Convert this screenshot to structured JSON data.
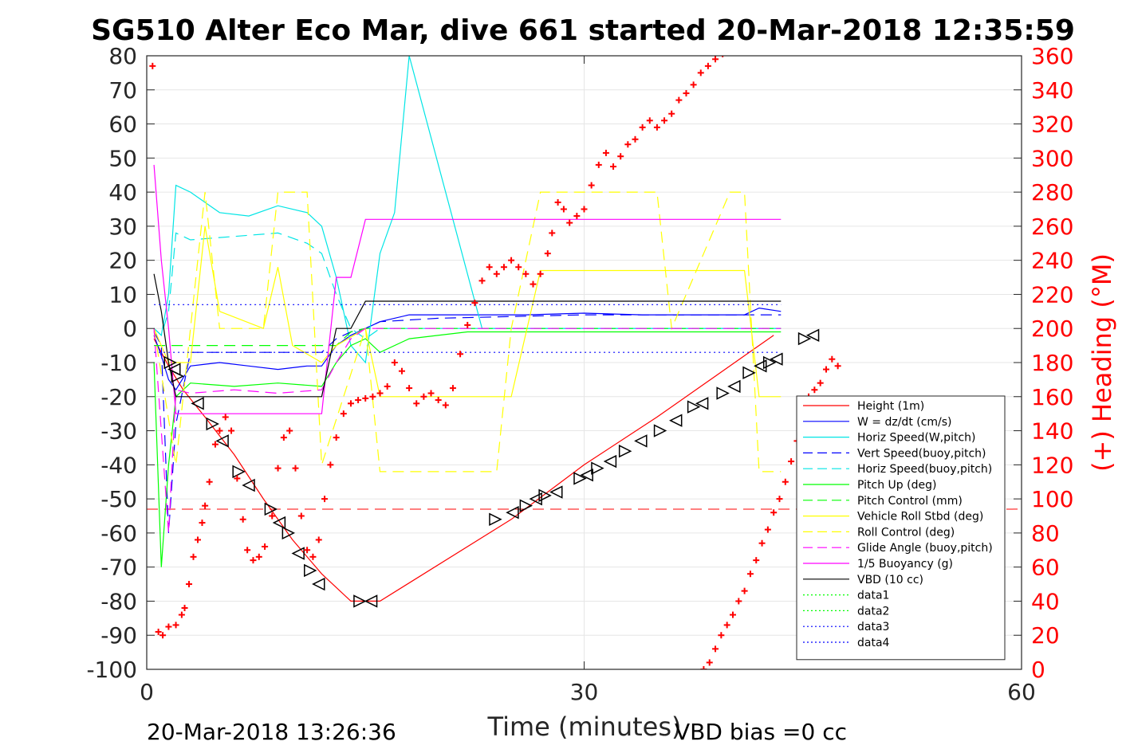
{
  "chart_data": {
    "type": "line",
    "title": "SG510 Alter Eco Mar, dive 661 started 20-Mar-2018 12:35:59",
    "xlabel": "Time (minutes)",
    "ylabel": "",
    "y2label": "(+) Heading (°M)",
    "xlim": [
      0,
      60
    ],
    "ylim": [
      -100,
      80
    ],
    "y2lim": [
      0,
      360
    ],
    "xticks": [
      "0",
      "30",
      "60"
    ],
    "yticks": [
      "80",
      "70",
      "60",
      "50",
      "40",
      "30",
      "20",
      "10",
      "0",
      "-10",
      "-20",
      "-30",
      "-40",
      "-50",
      "-60",
      "-70",
      "-80",
      "-90",
      "-100"
    ],
    "y2ticks": [
      "360",
      "340",
      "320",
      "300",
      "280",
      "260",
      "240",
      "220",
      "200",
      "180",
      "160",
      "140",
      "120",
      "100",
      "80",
      "60",
      "40",
      "20",
      "0"
    ],
    "grid": true,
    "legend_position": "lower-right",
    "footer_left": "20-Mar-2018 13:26:36",
    "footer_right": "VBD bias =0 cc",
    "colors": {
      "red": "#ff0000",
      "blue": "#0000ff",
      "cyan": "#00e5e5",
      "green": "#00ff00",
      "yellow": "#ffff00",
      "magenta": "#ff00ff",
      "black": "#000000"
    },
    "series": [
      {
        "name": "Height (1m)",
        "color": "#ff0000",
        "style": "solid",
        "x": [
          0.5,
          1.5,
          2.5,
          4,
          6,
          8,
          10,
          12,
          14,
          16,
          25,
          30,
          35,
          38,
          41,
          43
        ],
        "y": [
          -3,
          -11,
          -18,
          -26,
          -37,
          -50,
          -62,
          -72,
          -80,
          -80,
          -56,
          -40,
          -26,
          -17,
          -8,
          -2
        ]
      },
      {
        "name": "W = dz/dt (cm/s)",
        "color": "#0000ff",
        "style": "solid",
        "x": [
          0.5,
          1.0,
          1.5,
          2.0,
          3,
          5,
          7,
          9,
          11,
          12,
          13,
          14,
          15,
          16,
          18,
          22,
          26,
          30,
          34,
          38,
          41,
          42,
          43.5
        ],
        "y": [
          -2,
          -8,
          -15,
          -18,
          -11,
          -10,
          -11,
          -12,
          -11,
          -11,
          -5,
          -2,
          0,
          2,
          4,
          4,
          4,
          4.5,
          4,
          4,
          4,
          6,
          5
        ]
      },
      {
        "name": "Horiz Speed(W,pitch)",
        "color": "#00e5e5",
        "style": "solid",
        "x": [
          0.5,
          1,
          1.5,
          2,
          3,
          5,
          7,
          9,
          11,
          12,
          13,
          14,
          15,
          16,
          17,
          18,
          23,
          30,
          38,
          43.5
        ],
        "y": [
          0,
          -2,
          10,
          42,
          40,
          34,
          33,
          36,
          34,
          30,
          15,
          -5,
          -10,
          22,
          34,
          80,
          0,
          0,
          0,
          0
        ]
      },
      {
        "name": "Vert Speed(buoy,pitch)",
        "color": "#0000ff",
        "style": "dashed",
        "x": [
          0.5,
          1,
          1.5,
          2,
          3,
          6,
          9,
          12,
          13,
          14,
          15,
          16,
          20,
          30,
          43.5
        ],
        "y": [
          -1,
          -5,
          -60,
          -28,
          -7,
          -7,
          -7,
          -7,
          -3,
          -1,
          0,
          2,
          3,
          4,
          4
        ]
      },
      {
        "name": "Horiz Speed(buoy,pitch)",
        "color": "#00e5e5",
        "style": "dashed",
        "x": [
          0.5,
          1,
          1.5,
          2,
          3,
          6,
          9,
          11,
          12,
          13,
          14,
          15,
          16,
          20,
          30,
          43.5
        ],
        "y": [
          0,
          -2,
          5,
          28,
          26,
          27,
          28,
          25,
          22,
          10,
          0,
          -3,
          0,
          0,
          0,
          0
        ]
      },
      {
        "name": "Pitch Up (deg)",
        "color": "#00ff00",
        "style": "solid",
        "x": [
          0.5,
          1,
          1.5,
          2,
          3,
          6,
          9,
          12,
          13,
          14,
          15,
          16,
          18,
          22,
          30,
          43.5
        ],
        "y": [
          -10,
          -70,
          -40,
          -20,
          -16,
          -17,
          -16,
          -17,
          -10,
          -5,
          -3,
          -7,
          -3,
          -1,
          -1,
          -1
        ]
      },
      {
        "name": "Pitch Control (mm)",
        "color": "#00ff00",
        "style": "dashed",
        "x": [
          0.5,
          2,
          12,
          13,
          14,
          15,
          43.5
        ],
        "y": [
          -5,
          -5,
          -5,
          -5,
          -1,
          0,
          0
        ]
      },
      {
        "name": "Vehicle Roll Stbd (deg)",
        "color": "#ffff00",
        "style": "solid",
        "x": [
          0.5,
          1.5,
          3,
          4,
          5,
          8,
          9,
          10,
          12,
          13,
          15,
          16,
          20,
          25,
          27,
          30,
          36,
          37,
          41,
          42,
          43.5
        ],
        "y": [
          0,
          -10,
          -10,
          30,
          5,
          0,
          18,
          -5,
          -10,
          -5,
          0,
          -20,
          -20,
          -20,
          17,
          17,
          17,
          17,
          17,
          -20,
          -20
        ]
      },
      {
        "name": "Roll Control (deg)",
        "color": "#ffff00",
        "style": "dashed",
        "x": [
          0.5,
          2,
          4,
          5,
          8,
          9,
          11,
          12,
          15,
          16,
          20,
          24,
          25,
          27,
          35,
          36,
          40,
          41,
          42,
          43.5
        ],
        "y": [
          0,
          -40,
          40,
          0,
          0,
          40,
          40,
          -40,
          0,
          -42,
          -42,
          -42,
          0,
          40,
          40,
          0,
          40,
          40,
          -42,
          -42
        ]
      },
      {
        "name": "Glide Angle (buoy,pitch)",
        "color": "#ff00ff",
        "style": "dashed",
        "x": [
          0.5,
          1.5,
          2,
          3,
          6,
          9,
          12,
          13,
          14,
          15,
          16,
          20,
          30,
          43.5
        ],
        "y": [
          0,
          -60,
          -18,
          -19,
          -18,
          -19,
          -18,
          -10,
          -3,
          0,
          0,
          0,
          0,
          0
        ]
      },
      {
        "name": "1/5 Buoyancy (g)",
        "color": "#ff00ff",
        "style": "solid",
        "x": [
          0.5,
          1,
          1.5,
          2,
          12,
          13,
          14,
          15,
          16,
          30,
          43.5
        ],
        "y": [
          48,
          20,
          0,
          -25,
          -25,
          15,
          15,
          32,
          32,
          32,
          32
        ]
      },
      {
        "name": "VBD (10 cc)",
        "color": "#000000",
        "style": "solid",
        "x": [
          0.5,
          1,
          1.5,
          2,
          12,
          13,
          14,
          15,
          16,
          43.5
        ],
        "y": [
          16,
          5,
          -10,
          -20,
          -20,
          0,
          0,
          8,
          8,
          8
        ]
      },
      {
        "name": "data1",
        "color": "#00ff00",
        "style": "dotted",
        "x": [],
        "y": []
      },
      {
        "name": "data2",
        "color": "#00ff00",
        "style": "dotted",
        "x": [],
        "y": []
      },
      {
        "name": "data3",
        "color": "#0000ff",
        "style": "dotted",
        "x": [
          0.5,
          43.5
        ],
        "y": [
          7,
          7
        ]
      },
      {
        "name": "data4",
        "color": "#0000ff",
        "style": "dotted",
        "x": [
          0.5,
          43.5
        ],
        "y": [
          -7,
          -7
        ]
      }
    ],
    "reference_lines": [
      {
        "color": "#ff0000",
        "style": "dashed",
        "y": -53
      }
    ],
    "heading": {
      "color": "#ff0000",
      "points": [
        [
          0.4,
          354
        ],
        [
          0.8,
          22
        ],
        [
          1.1,
          20
        ],
        [
          1.5,
          25
        ],
        [
          2.0,
          26
        ],
        [
          2.4,
          32
        ],
        [
          2.6,
          36
        ],
        [
          2.9,
          50
        ],
        [
          3.2,
          66
        ],
        [
          3.5,
          76
        ],
        [
          3.8,
          86
        ],
        [
          4.0,
          96
        ],
        [
          4.3,
          110
        ],
        [
          4.7,
          132
        ],
        [
          5.0,
          140
        ],
        [
          5.4,
          148
        ],
        [
          5.8,
          140
        ],
        [
          6.2,
          112
        ],
        [
          6.6,
          88
        ],
        [
          6.9,
          70
        ],
        [
          7.3,
          64
        ],
        [
          7.7,
          66
        ],
        [
          8.1,
          72
        ],
        [
          8.6,
          90
        ],
        [
          9.0,
          118
        ],
        [
          9.4,
          136
        ],
        [
          9.8,
          140
        ],
        [
          10.2,
          118
        ],
        [
          10.6,
          90
        ],
        [
          11.0,
          70
        ],
        [
          11.4,
          66
        ],
        [
          11.8,
          76
        ],
        [
          12.2,
          100
        ],
        [
          12.6,
          120
        ],
        [
          13.0,
          136
        ],
        [
          13.5,
          150
        ],
        [
          14.0,
          156
        ],
        [
          14.5,
          158
        ],
        [
          15.0,
          159
        ],
        [
          15.5,
          160
        ],
        [
          16.0,
          162
        ],
        [
          16.5,
          166
        ],
        [
          17.0,
          180
        ],
        [
          17.5,
          175
        ],
        [
          18.0,
          165
        ],
        [
          18.5,
          156
        ],
        [
          19.0,
          160
        ],
        [
          19.5,
          162
        ],
        [
          20.0,
          158
        ],
        [
          20.5,
          155
        ],
        [
          21.0,
          165
        ],
        [
          21.5,
          185
        ],
        [
          22.0,
          202
        ],
        [
          22.5,
          215
        ],
        [
          23.0,
          228
        ],
        [
          23.5,
          236
        ],
        [
          24.0,
          232
        ],
        [
          24.5,
          236
        ],
        [
          25.0,
          240
        ],
        [
          25.5,
          236
        ],
        [
          26.0,
          232
        ],
        [
          26.5,
          226
        ],
        [
          27.0,
          232
        ],
        [
          27.5,
          244
        ],
        [
          27.8,
          256
        ],
        [
          28.2,
          274
        ],
        [
          28.6,
          270
        ],
        [
          29.0,
          262
        ],
        [
          29.5,
          266
        ],
        [
          30.0,
          270
        ],
        [
          30.5,
          284
        ],
        [
          31.0,
          296
        ],
        [
          31.5,
          303
        ],
        [
          32.0,
          295
        ],
        [
          32.5,
          301
        ],
        [
          33.0,
          308
        ],
        [
          33.5,
          311
        ],
        [
          34.0,
          318
        ],
        [
          34.5,
          322
        ],
        [
          35.0,
          318
        ],
        [
          35.5,
          322
        ],
        [
          36.0,
          326
        ],
        [
          36.5,
          334
        ],
        [
          37.0,
          338
        ],
        [
          37.5,
          343
        ],
        [
          38.0,
          350
        ],
        [
          38.5,
          354
        ],
        [
          39.0,
          358
        ],
        [
          39.5,
          361
        ],
        [
          38.2,
          0
        ],
        [
          38.6,
          4
        ],
        [
          39.0,
          12
        ],
        [
          39.4,
          20
        ],
        [
          39.8,
          26
        ],
        [
          40.2,
          32
        ],
        [
          40.6,
          40
        ],
        [
          41.0,
          46
        ],
        [
          41.4,
          56
        ],
        [
          41.8,
          64
        ],
        [
          42.2,
          74
        ],
        [
          42.6,
          82
        ],
        [
          43.0,
          92
        ],
        [
          43.4,
          100
        ],
        [
          43.8,
          110
        ],
        [
          44.2,
          122
        ],
        [
          44.6,
          134
        ],
        [
          45.0,
          148
        ],
        [
          45.4,
          160
        ],
        [
          45.8,
          164
        ],
        [
          46.2,
          168
        ],
        [
          46.6,
          176
        ],
        [
          47.0,
          182
        ],
        [
          47.4,
          178
        ]
      ]
    },
    "markers": {
      "color": "#000000",
      "points": [
        [
          1.6,
          -10
        ],
        [
          1.9,
          -12
        ],
        [
          2.1,
          -14
        ],
        [
          3.5,
          -22
        ],
        [
          4.5,
          -28
        ],
        [
          5.2,
          -33
        ],
        [
          6.3,
          -42
        ],
        [
          7.0,
          -46
        ],
        [
          8.5,
          -53
        ],
        [
          9.1,
          -57
        ],
        [
          9.7,
          -60
        ],
        [
          10.4,
          -66
        ],
        [
          11.2,
          -71
        ],
        [
          11.8,
          -75
        ],
        [
          14.6,
          -80
        ],
        [
          15.4,
          -80
        ],
        [
          23.9,
          -56
        ],
        [
          25.1,
          -54
        ],
        [
          26.0,
          -52
        ],
        [
          26.7,
          -50
        ],
        [
          27.3,
          -49
        ],
        [
          28.1,
          -48
        ],
        [
          29.7,
          -44
        ],
        [
          30.2,
          -43
        ],
        [
          30.9,
          -41
        ],
        [
          31.8,
          -39
        ],
        [
          32.8,
          -36
        ],
        [
          33.9,
          -33
        ],
        [
          35.2,
          -30
        ],
        [
          36.3,
          -27
        ],
        [
          37.5,
          -23
        ],
        [
          38.1,
          -22
        ],
        [
          39.5,
          -19
        ],
        [
          40.3,
          -17
        ],
        [
          41.3,
          -13
        ],
        [
          42.1,
          -11
        ],
        [
          42.7,
          -10
        ],
        [
          43.2,
          -9
        ],
        [
          45.1,
          -3
        ],
        [
          45.7,
          -2
        ]
      ]
    }
  }
}
